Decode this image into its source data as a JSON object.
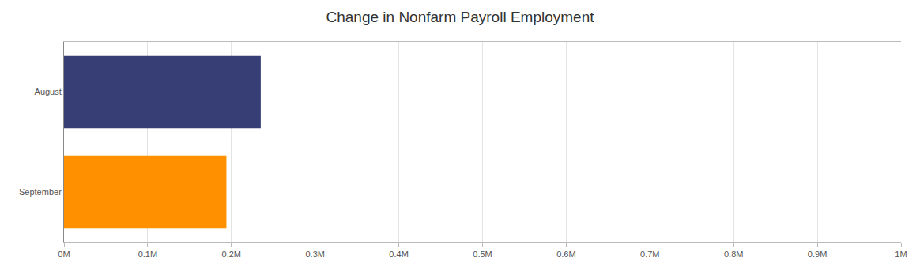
{
  "chart_data": {
    "type": "bar",
    "title": "Change in Nonfarm Payroll Employment",
    "orientation": "horizontal",
    "categories": [
      "August",
      "September"
    ],
    "values": [
      235000,
      194000
    ],
    "colors": [
      "#363e75",
      "#ff9000"
    ],
    "xlim": [
      0,
      1000000
    ],
    "xticks": [
      {
        "value": 0,
        "label": "0M"
      },
      {
        "value": 100000,
        "label": "0.1M"
      },
      {
        "value": 200000,
        "label": "0.2M"
      },
      {
        "value": 300000,
        "label": "0.3M"
      },
      {
        "value": 400000,
        "label": "0.4M"
      },
      {
        "value": 500000,
        "label": "0.5M"
      },
      {
        "value": 600000,
        "label": "0.6M"
      },
      {
        "value": 700000,
        "label": "0.7M"
      },
      {
        "value": 800000,
        "label": "0.8M"
      },
      {
        "value": 900000,
        "label": "0.9M"
      },
      {
        "value": 1000000,
        "label": "1M"
      }
    ],
    "grid": true
  }
}
